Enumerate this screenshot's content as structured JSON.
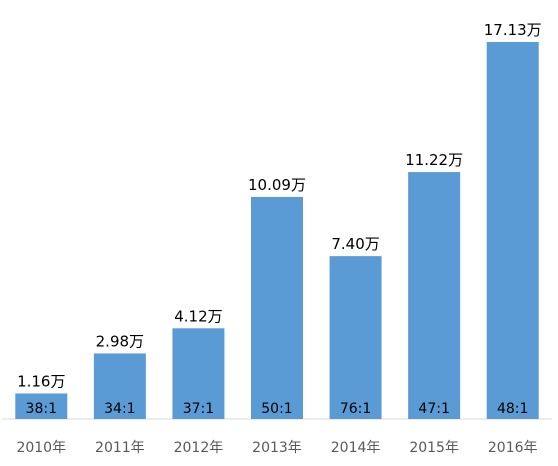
{
  "chart_data": {
    "type": "bar",
    "categories": [
      "2010年",
      "2011年",
      "2012年",
      "2013年",
      "2014年",
      "2015年",
      "2016年"
    ],
    "values": [
      1.16,
      2.98,
      4.12,
      10.09,
      7.4,
      11.22,
      17.13
    ],
    "value_labels": [
      "1.16万",
      "2.98万",
      "4.12万",
      "10.09万",
      "7.40万",
      "11.22万",
      "17.13万"
    ],
    "inner_labels": [
      "38:1",
      "34:1",
      "37:1",
      "50:1",
      "76:1",
      "47:1",
      "48:1"
    ],
    "title": "",
    "xlabel": "",
    "ylabel": "",
    "ylim": [
      0,
      17.5
    ],
    "grid": false,
    "legend": "none",
    "colors": {
      "bar": "#5B9BD5",
      "axis": "#D9D9D9"
    }
  }
}
